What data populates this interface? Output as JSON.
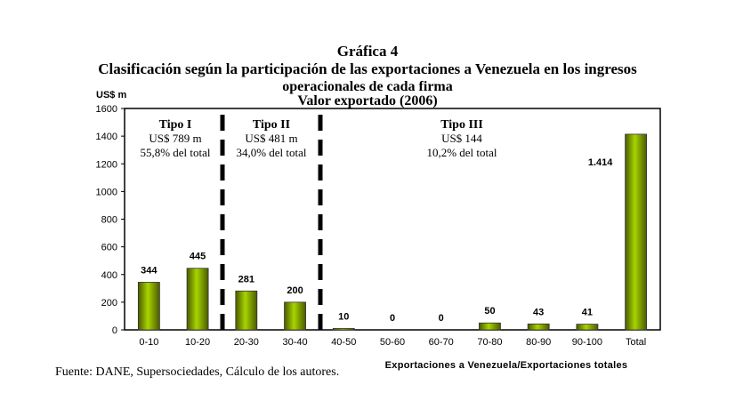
{
  "title_lines": [
    "Gráfica 4",
    "Clasificación según la participación de las exportaciones a Venezuela en  los ingresos",
    "operacionales de cada firma",
    "Valor exportado (2006)"
  ],
  "source": "Fuente: DANE, Supersociedades, Cálculo de los autores.",
  "colors": {
    "bar_light": "#a8d400",
    "bar_dark": "#4a5a00"
  },
  "chart_data": {
    "type": "bar",
    "title": "Valor exportado (2006)",
    "ylabel": "US$ m",
    "xlabel": "Exportaciones a Venezuela/Exportaciones totales",
    "ylim": [
      0,
      1600
    ],
    "yticks": [
      0,
      200,
      400,
      600,
      800,
      1000,
      1200,
      1400,
      1600
    ],
    "grid": false,
    "categories": [
      "0-10",
      "10-20",
      "20-30",
      "30-40",
      "40-50",
      "50-60",
      "60-70",
      "70-80",
      "80-90",
      "90-100",
      "Total"
    ],
    "values": [
      344,
      445,
      281,
      200,
      10,
      0,
      0,
      50,
      43,
      41,
      1414
    ],
    "data_labels": [
      "344",
      "445",
      "281",
      "200",
      "10",
      "0",
      "0",
      "50",
      "43",
      "41",
      "1.414"
    ],
    "groups": [
      {
        "name": "Tipo I",
        "value": "US$ 789 m",
        "share": "55,8% del total"
      },
      {
        "name": "Tipo II",
        "value": "US$ 481 m",
        "share": "34,0% del total"
      },
      {
        "name": "Tipo III",
        "value": "US$ 144",
        "share": "10,2% del total"
      }
    ]
  }
}
